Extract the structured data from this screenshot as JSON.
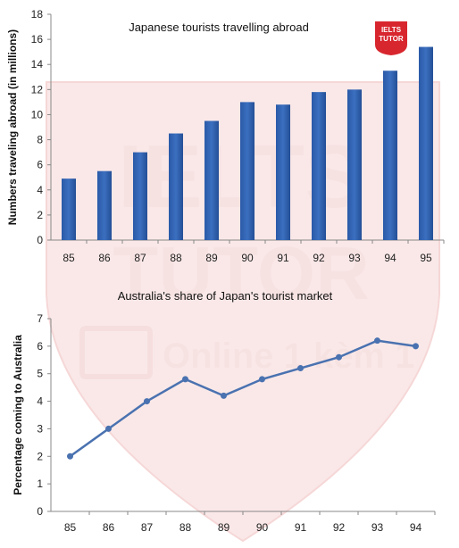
{
  "charts": [
    {
      "type": "bar",
      "title": "Japanese tourists travelling abroad",
      "xlabel": "",
      "ylabel": "Numbers traveling abroad (in millions)",
      "categories": [
        "85",
        "86",
        "87",
        "88",
        "89",
        "90",
        "91",
        "92",
        "93",
        "94",
        "95"
      ],
      "values": [
        4.9,
        5.5,
        7.0,
        8.5,
        9.5,
        11.0,
        10.8,
        11.8,
        12.0,
        13.5,
        15.4
      ],
      "ylim": [
        0,
        18
      ],
      "yticks": [
        "0",
        "2",
        "4",
        "6",
        "8",
        "10",
        "12",
        "14",
        "16",
        "18"
      ],
      "grid": false,
      "bar_color": "#3b6fbf"
    },
    {
      "type": "line",
      "title": "Australia's share of Japan's tourist market",
      "xlabel": "",
      "ylabel": "Percentage coming to Australia",
      "categories": [
        "85",
        "86",
        "87",
        "88",
        "89",
        "90",
        "91",
        "92",
        "93",
        "94"
      ],
      "values": [
        2.0,
        3.0,
        4.0,
        4.8,
        4.2,
        4.8,
        5.2,
        5.6,
        6.2,
        6.0
      ],
      "ylim": [
        0,
        7
      ],
      "yticks": [
        "0",
        "1",
        "2",
        "3",
        "4",
        "5",
        "6",
        "7"
      ],
      "grid": false,
      "line_color": "#4a72b0"
    }
  ],
  "logo": {
    "line1": "IELTS",
    "line2": "TUTOR",
    "color": "#d8262e"
  },
  "watermark": {
    "line1": "IELTS",
    "line2": "TUTOR",
    "line3": "Online 1 kèm 1",
    "color": "#d8262e"
  }
}
